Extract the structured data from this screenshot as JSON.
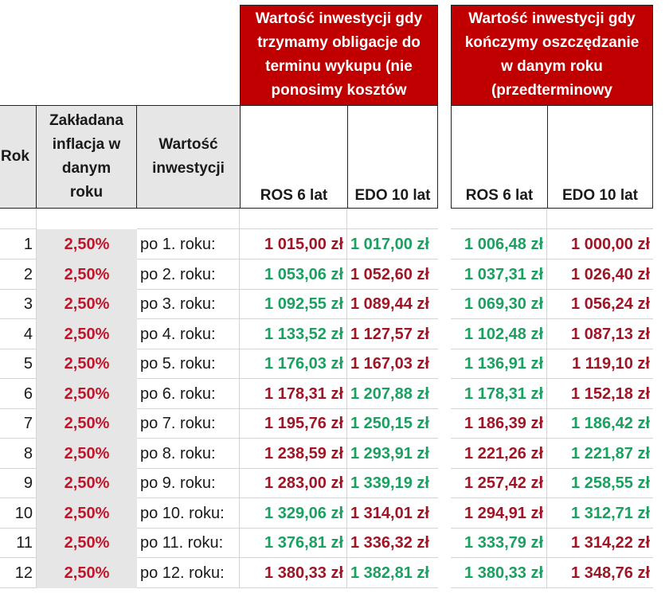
{
  "headers": {
    "group_hold": "Wartość inwestycji gdy\ntrzymamy obligacje  do\nterminu wykupu (nie\nponosimy kosztów",
    "group_early": "Wartość inwestycji gdy\nkończymy oszczędzanie\nw danym roku\n(przedterminowy",
    "rok": "Rok",
    "inflation": "Zakładana\ninflacja w\ndanym\nroku",
    "value": "Wartość\ninwestycji",
    "hold_ros": "ROS 6 lat",
    "hold_edo": "EDO 10 lat",
    "early_ros": "ROS 6 lat",
    "early_edo": "EDO 10 lat"
  },
  "colors": {
    "header_red": "#c00000",
    "value_red": "#a01526",
    "value_green": "#1aa060",
    "inflation_red": "#c0152b",
    "gray_fill": "#e6e6e6"
  },
  "rows": [
    {
      "rok": "1",
      "infl": "2,50%",
      "label": "po 1. roku:",
      "hold_ros": "1 015,00 zł",
      "hold_ros_c": "red",
      "hold_edo": "1 017,00 zł",
      "hold_edo_c": "green",
      "early_ros": "1 006,48 zł",
      "early_ros_c": "green",
      "early_edo": "1 000,00 zł",
      "early_edo_c": "red"
    },
    {
      "rok": "2",
      "infl": "2,50%",
      "label": "po 2. roku:",
      "hold_ros": "1 053,06 zł",
      "hold_ros_c": "green",
      "hold_edo": "1 052,60 zł",
      "hold_edo_c": "red",
      "early_ros": "1 037,31 zł",
      "early_ros_c": "green",
      "early_edo": "1 026,40 zł",
      "early_edo_c": "red"
    },
    {
      "rok": "3",
      "infl": "2,50%",
      "label": "po 3. roku:",
      "hold_ros": "1 092,55 zł",
      "hold_ros_c": "green",
      "hold_edo": "1 089,44 zł",
      "hold_edo_c": "red",
      "early_ros": "1 069,30 zł",
      "early_ros_c": "green",
      "early_edo": "1 056,24 zł",
      "early_edo_c": "red"
    },
    {
      "rok": "4",
      "infl": "2,50%",
      "label": "po 4. roku:",
      "hold_ros": "1 133,52 zł",
      "hold_ros_c": "green",
      "hold_edo": "1 127,57 zł",
      "hold_edo_c": "red",
      "early_ros": "1 102,48 zł",
      "early_ros_c": "green",
      "early_edo": "1 087,13 zł",
      "early_edo_c": "red"
    },
    {
      "rok": "5",
      "infl": "2,50%",
      "label": "po 5. roku:",
      "hold_ros": "1 176,03 zł",
      "hold_ros_c": "green",
      "hold_edo": "1 167,03 zł",
      "hold_edo_c": "red",
      "early_ros": "1 136,91 zł",
      "early_ros_c": "green",
      "early_edo": "1 119,10 zł",
      "early_edo_c": "red"
    },
    {
      "rok": "6",
      "infl": "2,50%",
      "label": "po 6. roku:",
      "hold_ros": "1 178,31 zł",
      "hold_ros_c": "red",
      "hold_edo": "1 207,88 zł",
      "hold_edo_c": "green",
      "early_ros": "1 178,31 zł",
      "early_ros_c": "green",
      "early_edo": "1 152,18 zł",
      "early_edo_c": "red"
    },
    {
      "rok": "7",
      "infl": "2,50%",
      "label": "po 7. roku:",
      "hold_ros": "1 195,76 zł",
      "hold_ros_c": "red",
      "hold_edo": "1 250,15 zł",
      "hold_edo_c": "green",
      "early_ros": "1 186,39 zł",
      "early_ros_c": "red",
      "early_edo": "1 186,42 zł",
      "early_edo_c": "green"
    },
    {
      "rok": "8",
      "infl": "2,50%",
      "label": "po 8. roku:",
      "hold_ros": "1 238,59 zł",
      "hold_ros_c": "red",
      "hold_edo": "1 293,91 zł",
      "hold_edo_c": "green",
      "early_ros": "1 221,26 zł",
      "early_ros_c": "red",
      "early_edo": "1 221,87 zł",
      "early_edo_c": "green"
    },
    {
      "rok": "9",
      "infl": "2,50%",
      "label": "po 9. roku:",
      "hold_ros": "1 283,00 zł",
      "hold_ros_c": "red",
      "hold_edo": "1 339,19 zł",
      "hold_edo_c": "green",
      "early_ros": "1 257,42 zł",
      "early_ros_c": "red",
      "early_edo": "1 258,55 zł",
      "early_edo_c": "green"
    },
    {
      "rok": "10",
      "infl": "2,50%",
      "label": "po 10. roku:",
      "hold_ros": "1 329,06 zł",
      "hold_ros_c": "green",
      "hold_edo": "1 314,01 zł",
      "hold_edo_c": "red",
      "early_ros": "1 294,91 zł",
      "early_ros_c": "red",
      "early_edo": "1 312,71 zł",
      "early_edo_c": "green"
    },
    {
      "rok": "11",
      "infl": "2,50%",
      "label": "po 11. roku:",
      "hold_ros": "1 376,81 zł",
      "hold_ros_c": "green",
      "hold_edo": "1 336,32 zł",
      "hold_edo_c": "red",
      "early_ros": "1 333,79 zł",
      "early_ros_c": "green",
      "early_edo": "1 314,22 zł",
      "early_edo_c": "red"
    },
    {
      "rok": "12",
      "infl": "2,50%",
      "label": "po 12. roku:",
      "hold_ros": "1 380,33 zł",
      "hold_ros_c": "red",
      "hold_edo": "1 382,81 zł",
      "hold_edo_c": "green",
      "early_ros": "1 380,33 zł",
      "early_ros_c": "green",
      "early_edo": "1 348,76 zł",
      "early_edo_c": "red"
    }
  ]
}
